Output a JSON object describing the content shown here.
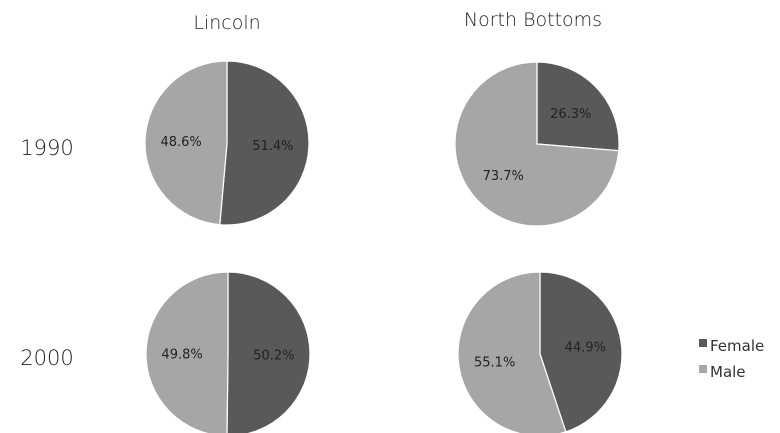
{
  "chart_data": {
    "type": "pie",
    "columns": [
      "Lincoln",
      "North Bottoms"
    ],
    "rows": [
      "1990",
      "2000"
    ],
    "legend": {
      "placement": "bottom-right",
      "entries": [
        {
          "name": "Female",
          "color": "#595959"
        },
        {
          "name": "Male",
          "color": "#a6a6a6"
        }
      ]
    },
    "pies": [
      {
        "column": "Lincoln",
        "row": "1990",
        "slices": [
          {
            "name": "Female",
            "value": 51.4,
            "label": "51.4%"
          },
          {
            "name": "Male",
            "value": 48.6,
            "label": "48.6%"
          }
        ]
      },
      {
        "column": "North Bottoms",
        "row": "1990",
        "slices": [
          {
            "name": "Female",
            "value": 26.3,
            "label": "26.3%"
          },
          {
            "name": "Male",
            "value": 73.7,
            "label": "73.7%"
          }
        ]
      },
      {
        "column": "Lincoln",
        "row": "2000",
        "slices": [
          {
            "name": "Female",
            "value": 50.2,
            "label": "50.2%"
          },
          {
            "name": "Male",
            "value": 49.8,
            "label": "49.8%"
          }
        ]
      },
      {
        "column": "North Bottoms",
        "row": "2000",
        "slices": [
          {
            "name": "Female",
            "value": 44.9,
            "label": "44.9%"
          },
          {
            "name": "Male",
            "value": 55.1,
            "label": "55.1%"
          }
        ]
      }
    ]
  }
}
